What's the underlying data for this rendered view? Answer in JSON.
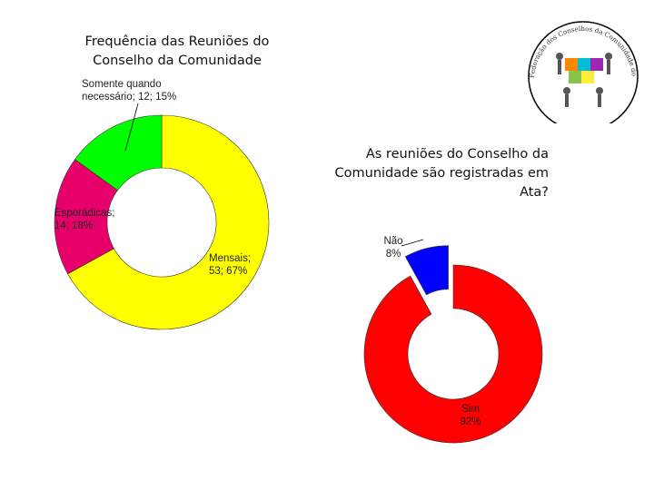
{
  "chart_data": [
    {
      "type": "pie",
      "style": "donut",
      "title": "Frequência das Reuniões do Conselho da Comunidade",
      "slices": [
        {
          "label": "Mensais; 53; 67%",
          "category": "Mensais",
          "value": 53,
          "percent": 67,
          "color": "#ffff00"
        },
        {
          "label": "Esporádicas; 14; 18%",
          "category": "Esporádicas",
          "value": 14,
          "percent": 18,
          "color": "#e8006a"
        },
        {
          "label": "Somente quando necessário; 12; 15%",
          "category": "Somente quando necessário",
          "value": 12,
          "percent": 15,
          "color": "#00ff00"
        }
      ]
    },
    {
      "type": "pie",
      "style": "donut",
      "title": "As reuniões do Conselho da Comunidade são registradas em Ata?",
      "slices": [
        {
          "label": "Sim 92%",
          "category": "Sim",
          "percent": 92,
          "color": "#ff0000"
        },
        {
          "label": "Não 8%",
          "category": "Não",
          "percent": 8,
          "color": "#0000ff"
        }
      ]
    }
  ],
  "logo": {
    "arc_text": "Federação dos Conselhos da Comunidade do Paraná"
  }
}
